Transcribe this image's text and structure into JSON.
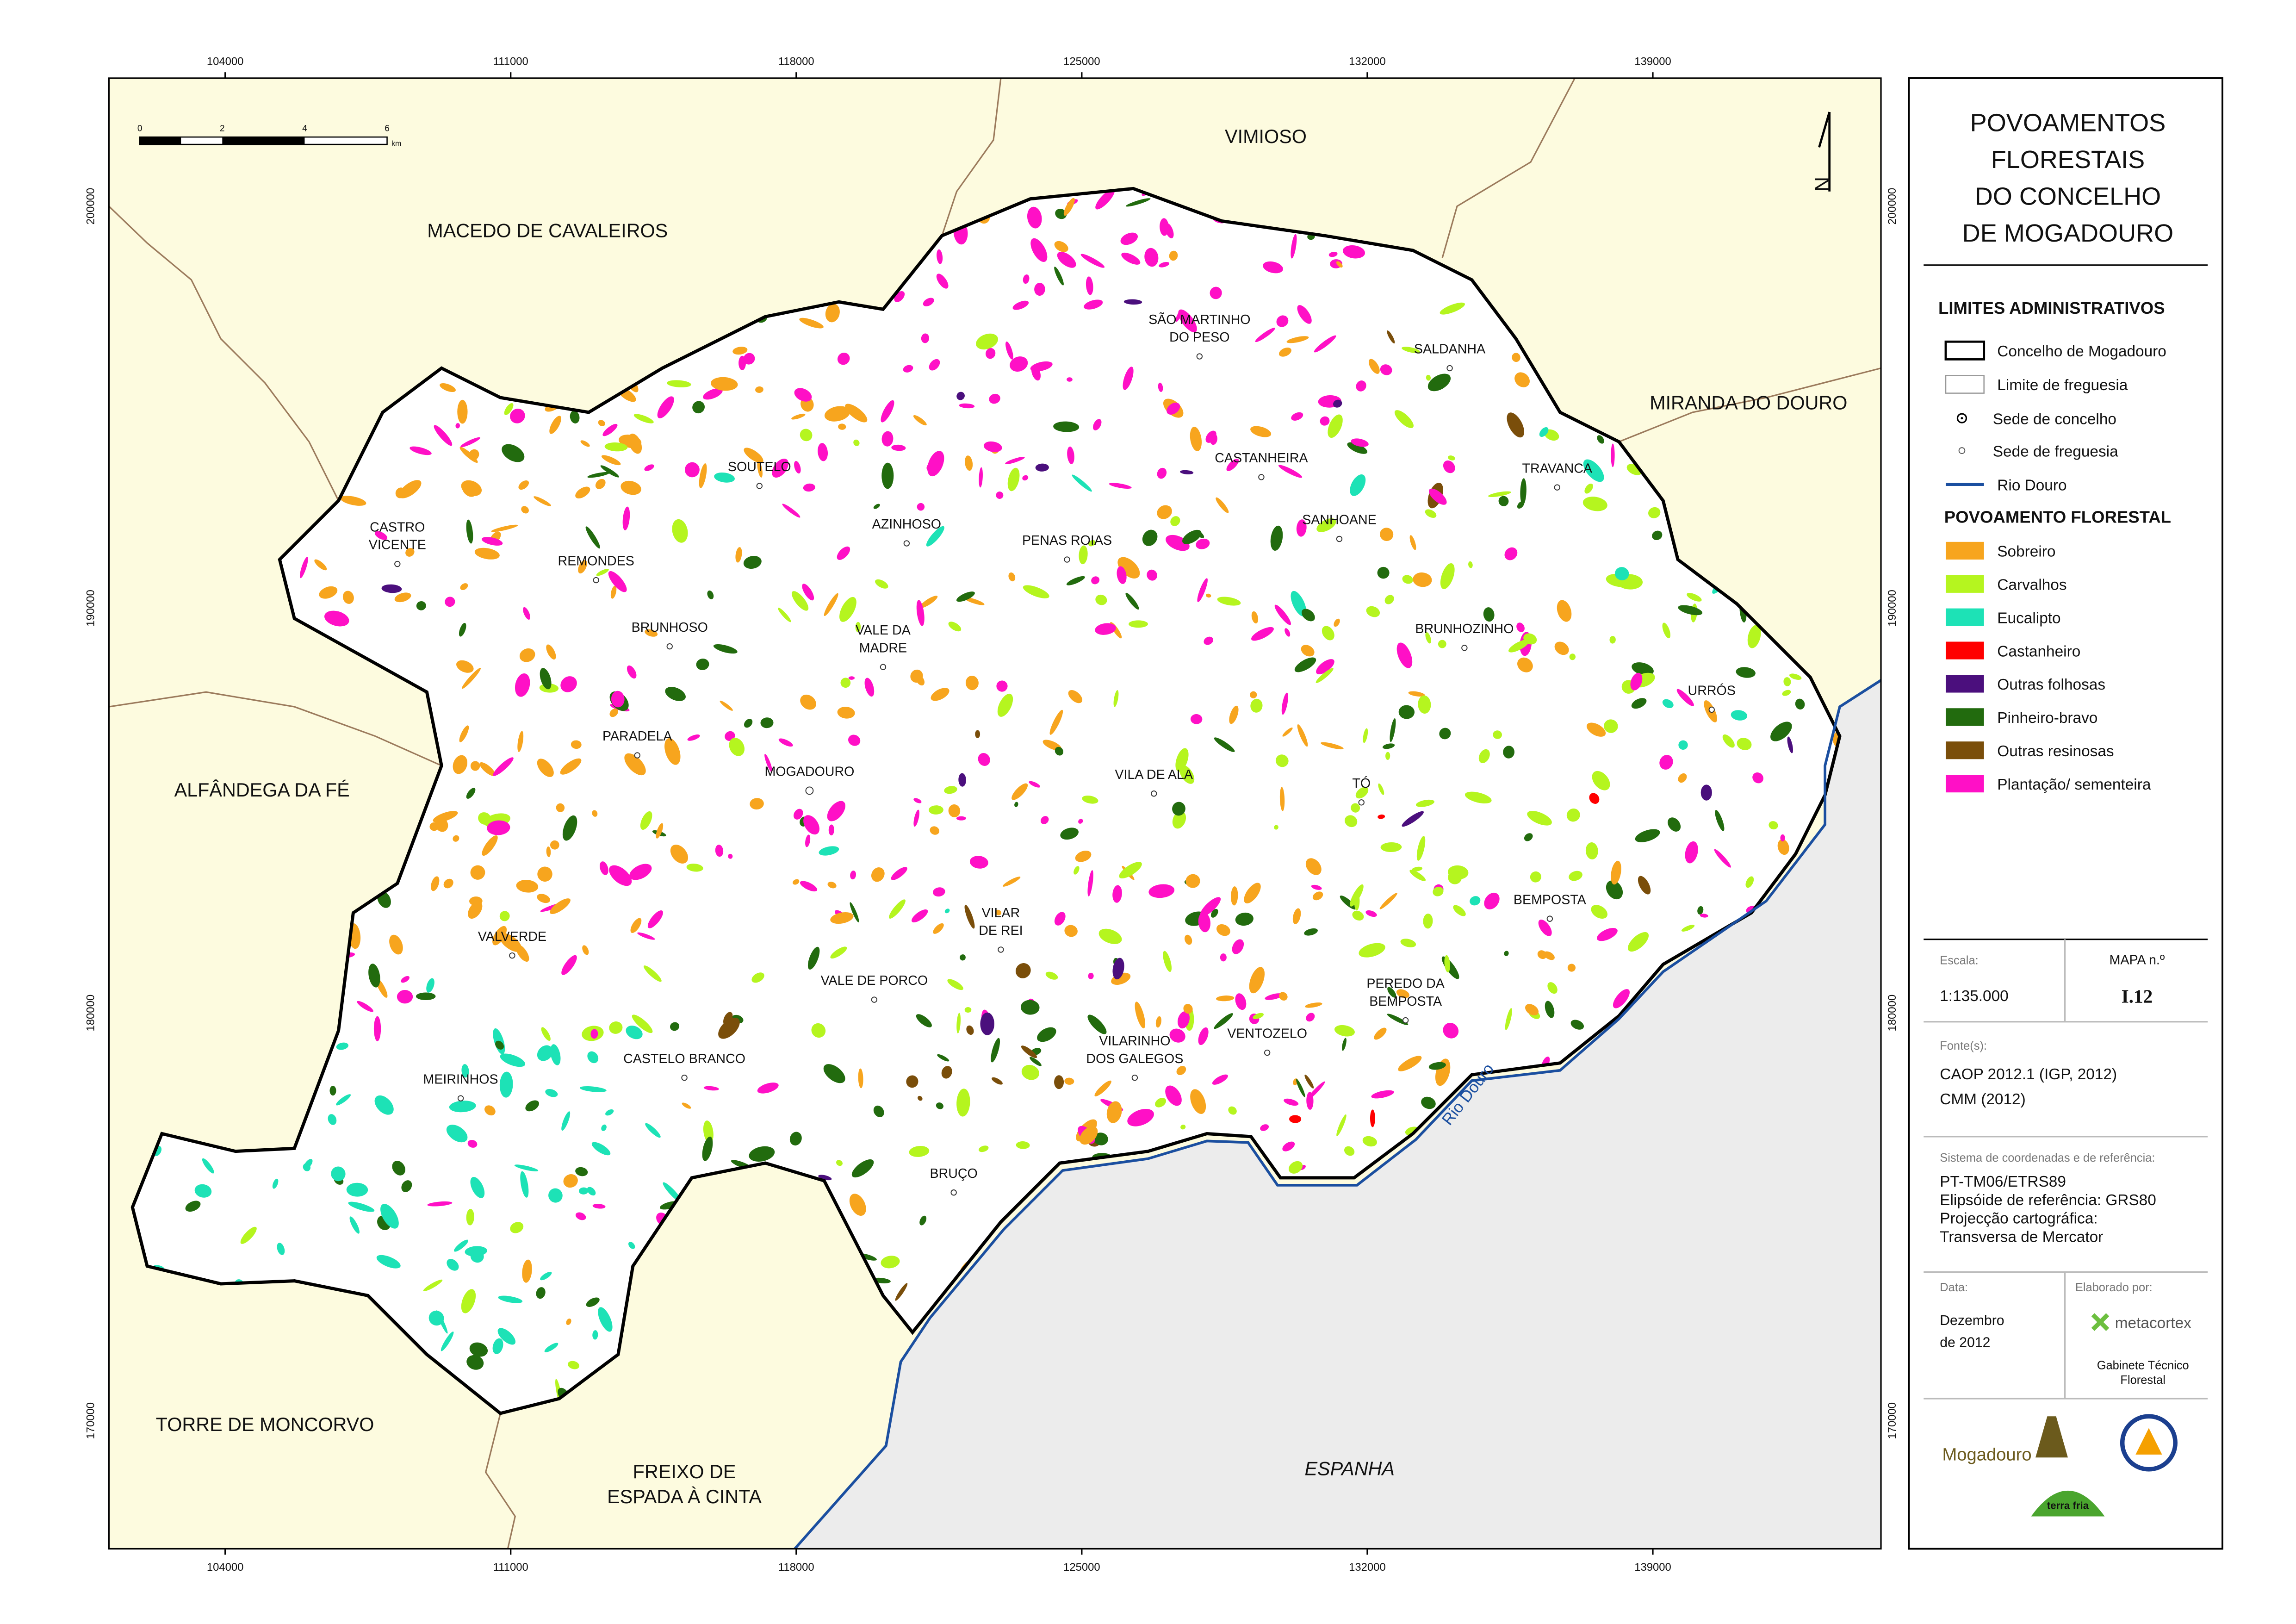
{
  "title": [
    "POVOAMENTOS",
    "FLORESTAIS",
    "DO CONCELHO",
    "DE MOGADOURO"
  ],
  "grid": {
    "x_ticks": [
      "104000",
      "111000",
      "118000",
      "125000",
      "132000",
      "139000"
    ],
    "y_ticks": [
      "200000",
      "190000",
      "180000",
      "170000"
    ]
  },
  "scale_bar": {
    "ticks": [
      "0",
      "2",
      "4",
      "6"
    ],
    "unit": "km"
  },
  "north": "N",
  "neighbors": [
    [
      "VIMIOSO"
    ],
    [
      "MACEDO DE CAVALEIROS"
    ],
    [
      "MIRANDA DO DOURO"
    ],
    [
      "ALFÂNDEGA DA FÉ"
    ],
    [
      "TORRE DE MONCORVO"
    ],
    [
      "FREIXO DE",
      "ESPADA À CINTA"
    ],
    [
      "ESPANHA"
    ]
  ],
  "parishes": [
    [
      "SÃO MARTINHO",
      "DO PESO"
    ],
    [
      "SALDANHA"
    ],
    [
      "CASTANHEIRA"
    ],
    [
      "TRAVANCA"
    ],
    [
      "SOUTELO"
    ],
    [
      "AZINHOSO"
    ],
    [
      "SANHOANE"
    ],
    [
      "PENAS ROIAS"
    ],
    [
      "CASTRO",
      "VICENTE"
    ],
    [
      "REMONDES"
    ],
    [
      "BRUNHOSO"
    ],
    [
      "VALE DA",
      "MADRE"
    ],
    [
      "BRUNHOZINHO"
    ],
    [
      "URRÓS"
    ],
    [
      "PARADELA"
    ],
    [
      "MOGADOURO"
    ],
    [
      "VILA DE ALA"
    ],
    [
      "TÓ"
    ],
    [
      "BEMPOSTA"
    ],
    [
      "VILAR",
      "DE REI"
    ],
    [
      "VALVERDE"
    ],
    [
      "VALE DE PORCO"
    ],
    [
      "PEREDO DA",
      "BEMPOSTA"
    ],
    [
      "VILARINHO",
      "DOS GALEGOS"
    ],
    [
      "VENTOZELO"
    ],
    [
      "CASTELO BRANCO"
    ],
    [
      "MEIRINHOS"
    ],
    [
      "BRUÇO"
    ]
  ],
  "river_label": "Rio Douro",
  "legend": {
    "admin_title": "LIMITES ADMINISTRATIVOS",
    "admin_items": [
      "Concelho de Mogadouro",
      "Limite de freguesia",
      "Sede de concelho",
      "Sede de freguesia",
      "Rio Douro"
    ],
    "forest_title": "POVOAMENTO FLORESTAL",
    "forest_items": [
      {
        "label": "Sobreiro",
        "color": "#f7a51e"
      },
      {
        "label": "Carvalhos",
        "color": "#b5f51f"
      },
      {
        "label": "Eucalipto",
        "color": "#1de2b6"
      },
      {
        "label": "Castanheiro",
        "color": "#ff0000"
      },
      {
        "label": "Outras folhosas",
        "color": "#4b0f7d"
      },
      {
        "label": "Pinheiro-bravo",
        "color": "#226b0e"
      },
      {
        "label": "Outras resinosas",
        "color": "#7a4e0a"
      },
      {
        "label": "Plantação/ sementeira",
        "color": "#ff10c6"
      }
    ]
  },
  "info": {
    "scale_label": "Escala:",
    "scale": "1:135.000",
    "map_label": "MAPA  n.º",
    "map_number": "I.12",
    "sources_label": "Fonte(s):",
    "sources": [
      "CAOP 2012.1 (IGP, 2012)",
      "CMM (2012)"
    ],
    "crs_label": "Sistema de coordenadas e de referência:",
    "crs": [
      "PT-TM06/ETRS89",
      "Elipsóide de referência: GRS80",
      "Projecção cartográfica:",
      "Transversa de Mercator"
    ],
    "date_label": "Data:",
    "date": [
      "Dezembro",
      "de 2012"
    ],
    "author_label": "Elaborado por:",
    "author": "metacortex",
    "author_unit": [
      "Gabinete Técnico",
      "Florestal"
    ],
    "logos": [
      "Mogadouro",
      "terra fria"
    ]
  }
}
